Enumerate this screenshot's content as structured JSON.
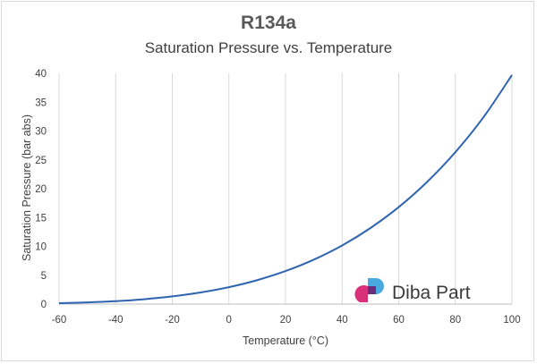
{
  "chart_data": {
    "type": "line",
    "title": "R134a",
    "subtitle": "Saturation Pressure vs. Temperature",
    "xlabel": "Temperature (°C)",
    "ylabel": "Saturation Pressure (bar abs)",
    "xlim": [
      -60,
      100
    ],
    "ylim": [
      0,
      40
    ],
    "xticks": [
      -60,
      -40,
      -20,
      0,
      20,
      40,
      60,
      80,
      100
    ],
    "yticks": [
      0,
      5,
      10,
      15,
      20,
      25,
      30,
      35,
      40
    ],
    "grid": "vertical",
    "legend": "none",
    "series": [
      {
        "color": "#2e63b0",
        "x": [
          -60,
          -50,
          -40,
          -30,
          -20,
          -10,
          0,
          10,
          20,
          30,
          40,
          50,
          60,
          70,
          80,
          90,
          100
        ],
        "y": [
          0.16,
          0.29,
          0.51,
          0.84,
          1.33,
          2.01,
          2.93,
          4.15,
          5.72,
          7.7,
          10.16,
          13.18,
          16.81,
          21.16,
          26.33,
          32.43,
          39.7
        ]
      }
    ]
  },
  "watermark": {
    "text": "Diba Part",
    "colors": {
      "blue": "#4aa8e0",
      "magenta": "#d9307a",
      "purple": "#6a2b7a"
    }
  }
}
